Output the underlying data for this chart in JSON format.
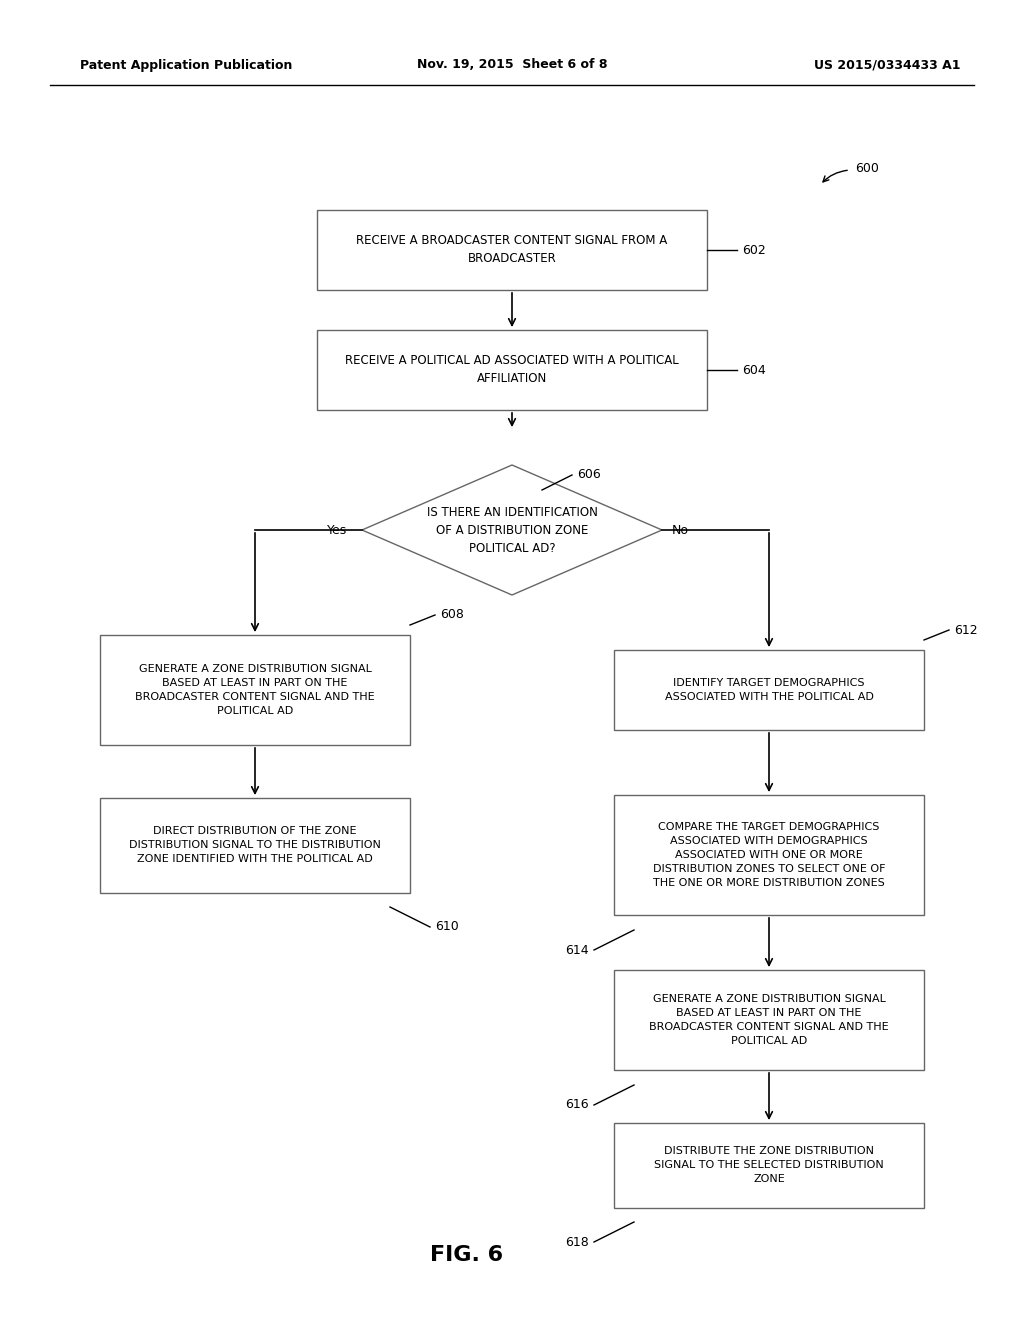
{
  "bg_color": "#ffffff",
  "header_left": "Patent Application Publication",
  "header_center": "Nov. 19, 2015  Sheet 6 of 8",
  "header_right": "US 2015/0334433 A1",
  "fig_label": "FIG. 6"
}
